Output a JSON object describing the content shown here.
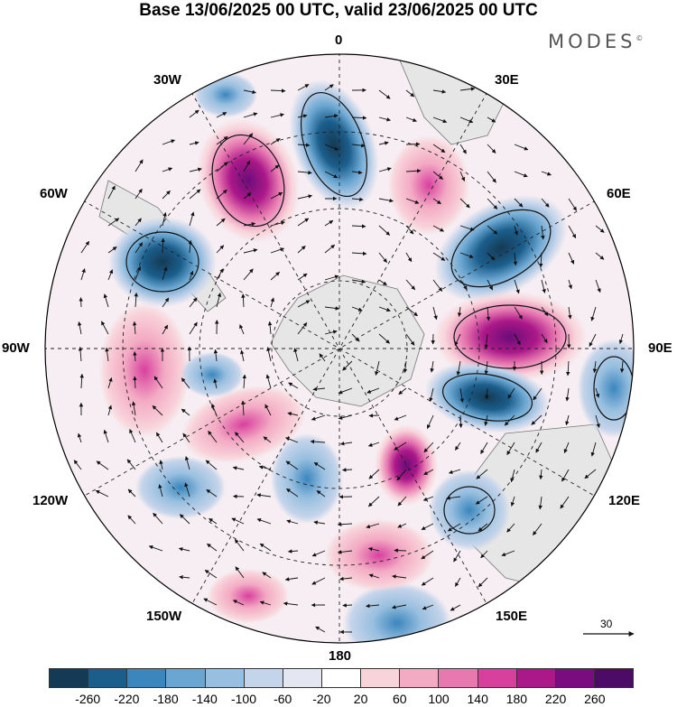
{
  "header": {
    "title": "Base 13/06/2025 00 UTC, valid 23/06/2025 00 UTC",
    "brand": "MODES",
    "brand_mark": "©"
  },
  "map": {
    "projection": "south-polar-stereographic",
    "longitude_labels": {
      "lon_0": "0",
      "lon_30e": "30E",
      "lon_60e": "60E",
      "lon_90e": "90E",
      "lon_120e": "120E",
      "lon_150e": "150E",
      "lon_180": "180",
      "lon_150w": "150W",
      "lon_120w": "120W",
      "lon_90w": "90W",
      "lon_60w": "60W",
      "lon_30w": "30W"
    },
    "reference_vector_label": "30",
    "land_color": "#e6e6e6",
    "graticule_style": "dashed"
  },
  "colorbar": {
    "colors": [
      "#153a55",
      "#1b5e8c",
      "#3a86bd",
      "#6aa6d1",
      "#98bfdf",
      "#c4d4ea",
      "#e4e6f2",
      "#ffffff",
      "#f8d3da",
      "#f3aac3",
      "#e778b0",
      "#d8409e",
      "#ab1889",
      "#7a0c7f",
      "#4c0b67"
    ],
    "tick_labels": [
      "-260",
      "-220",
      "-180",
      "-140",
      "-100",
      "-60",
      "-20",
      "20",
      "60",
      "100",
      "140",
      "180",
      "220",
      "260"
    ]
  }
}
